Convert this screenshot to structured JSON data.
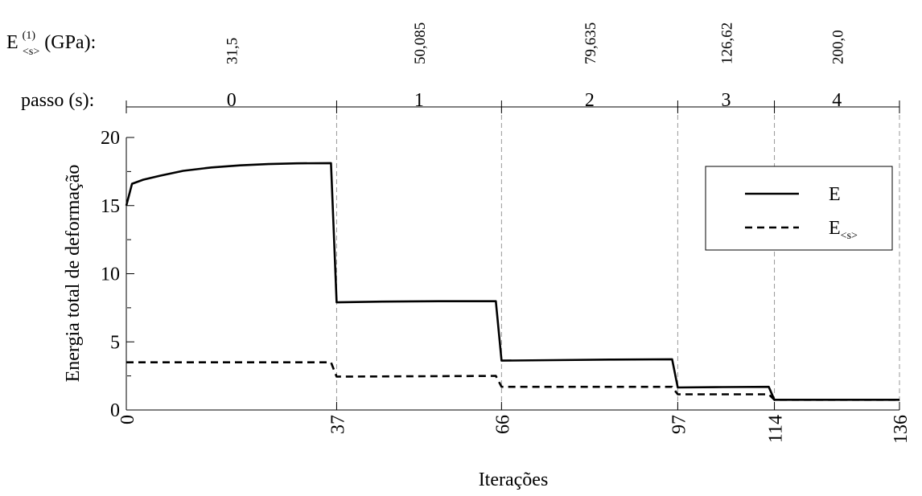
{
  "chart_data": {
    "type": "line",
    "ylabel": "Energia total de deformação",
    "xlabel": "Iterações",
    "ylim": [
      0,
      20
    ],
    "xlim": [
      0,
      136
    ],
    "yticks": [
      "0",
      "5",
      "10",
      "15",
      "20"
    ],
    "xticks": [
      "0",
      "37",
      "66",
      "97",
      "114",
      "136"
    ],
    "xtick_values": [
      0,
      37,
      66,
      97,
      114,
      136
    ],
    "grid": "vertical dashed lines at step boundaries",
    "legend_position": "top-right",
    "top_axes": {
      "modulus_label_main": "E",
      "modulus_label_sup": "(1)",
      "modulus_label_sub": "<s>",
      "modulus_label_unit": " (GPa):",
      "modulus_values": [
        "31,5",
        "50,085",
        "79,635",
        "126,62",
        "200,0"
      ],
      "step_label": "passo (s):",
      "step_values": [
        "0",
        "1",
        "2",
        "3",
        "4"
      ],
      "step_boundaries": [
        0,
        37,
        66,
        97,
        114,
        136
      ]
    },
    "series": [
      {
        "name": "E",
        "legend_label": "E",
        "legend_sub": "",
        "style": "solid",
        "points": [
          [
            0,
            15.0
          ],
          [
            1,
            16.6
          ],
          [
            3,
            16.9
          ],
          [
            6,
            17.2
          ],
          [
            10,
            17.55
          ],
          [
            15,
            17.8
          ],
          [
            20,
            17.95
          ],
          [
            25,
            18.05
          ],
          [
            30,
            18.1
          ],
          [
            36,
            18.12
          ],
          [
            37,
            7.9
          ],
          [
            45,
            7.95
          ],
          [
            55,
            7.98
          ],
          [
            65,
            7.98
          ],
          [
            66,
            3.62
          ],
          [
            75,
            3.66
          ],
          [
            85,
            3.7
          ],
          [
            96,
            3.72
          ],
          [
            97,
            1.65
          ],
          [
            105,
            1.68
          ],
          [
            113,
            1.7
          ],
          [
            114,
            0.75
          ],
          [
            125,
            0.75
          ],
          [
            136,
            0.75
          ]
        ]
      },
      {
        "name": "E_<s>",
        "legend_label": "E",
        "legend_sub": "<s>",
        "style": "dashed",
        "points": [
          [
            0,
            3.5
          ],
          [
            36,
            3.5
          ],
          [
            37,
            2.45
          ],
          [
            65,
            2.5
          ],
          [
            66,
            1.7
          ],
          [
            96,
            1.7
          ],
          [
            97,
            1.15
          ],
          [
            113,
            1.15
          ],
          [
            114,
            0.75
          ],
          [
            136,
            0.75
          ]
        ]
      }
    ]
  }
}
